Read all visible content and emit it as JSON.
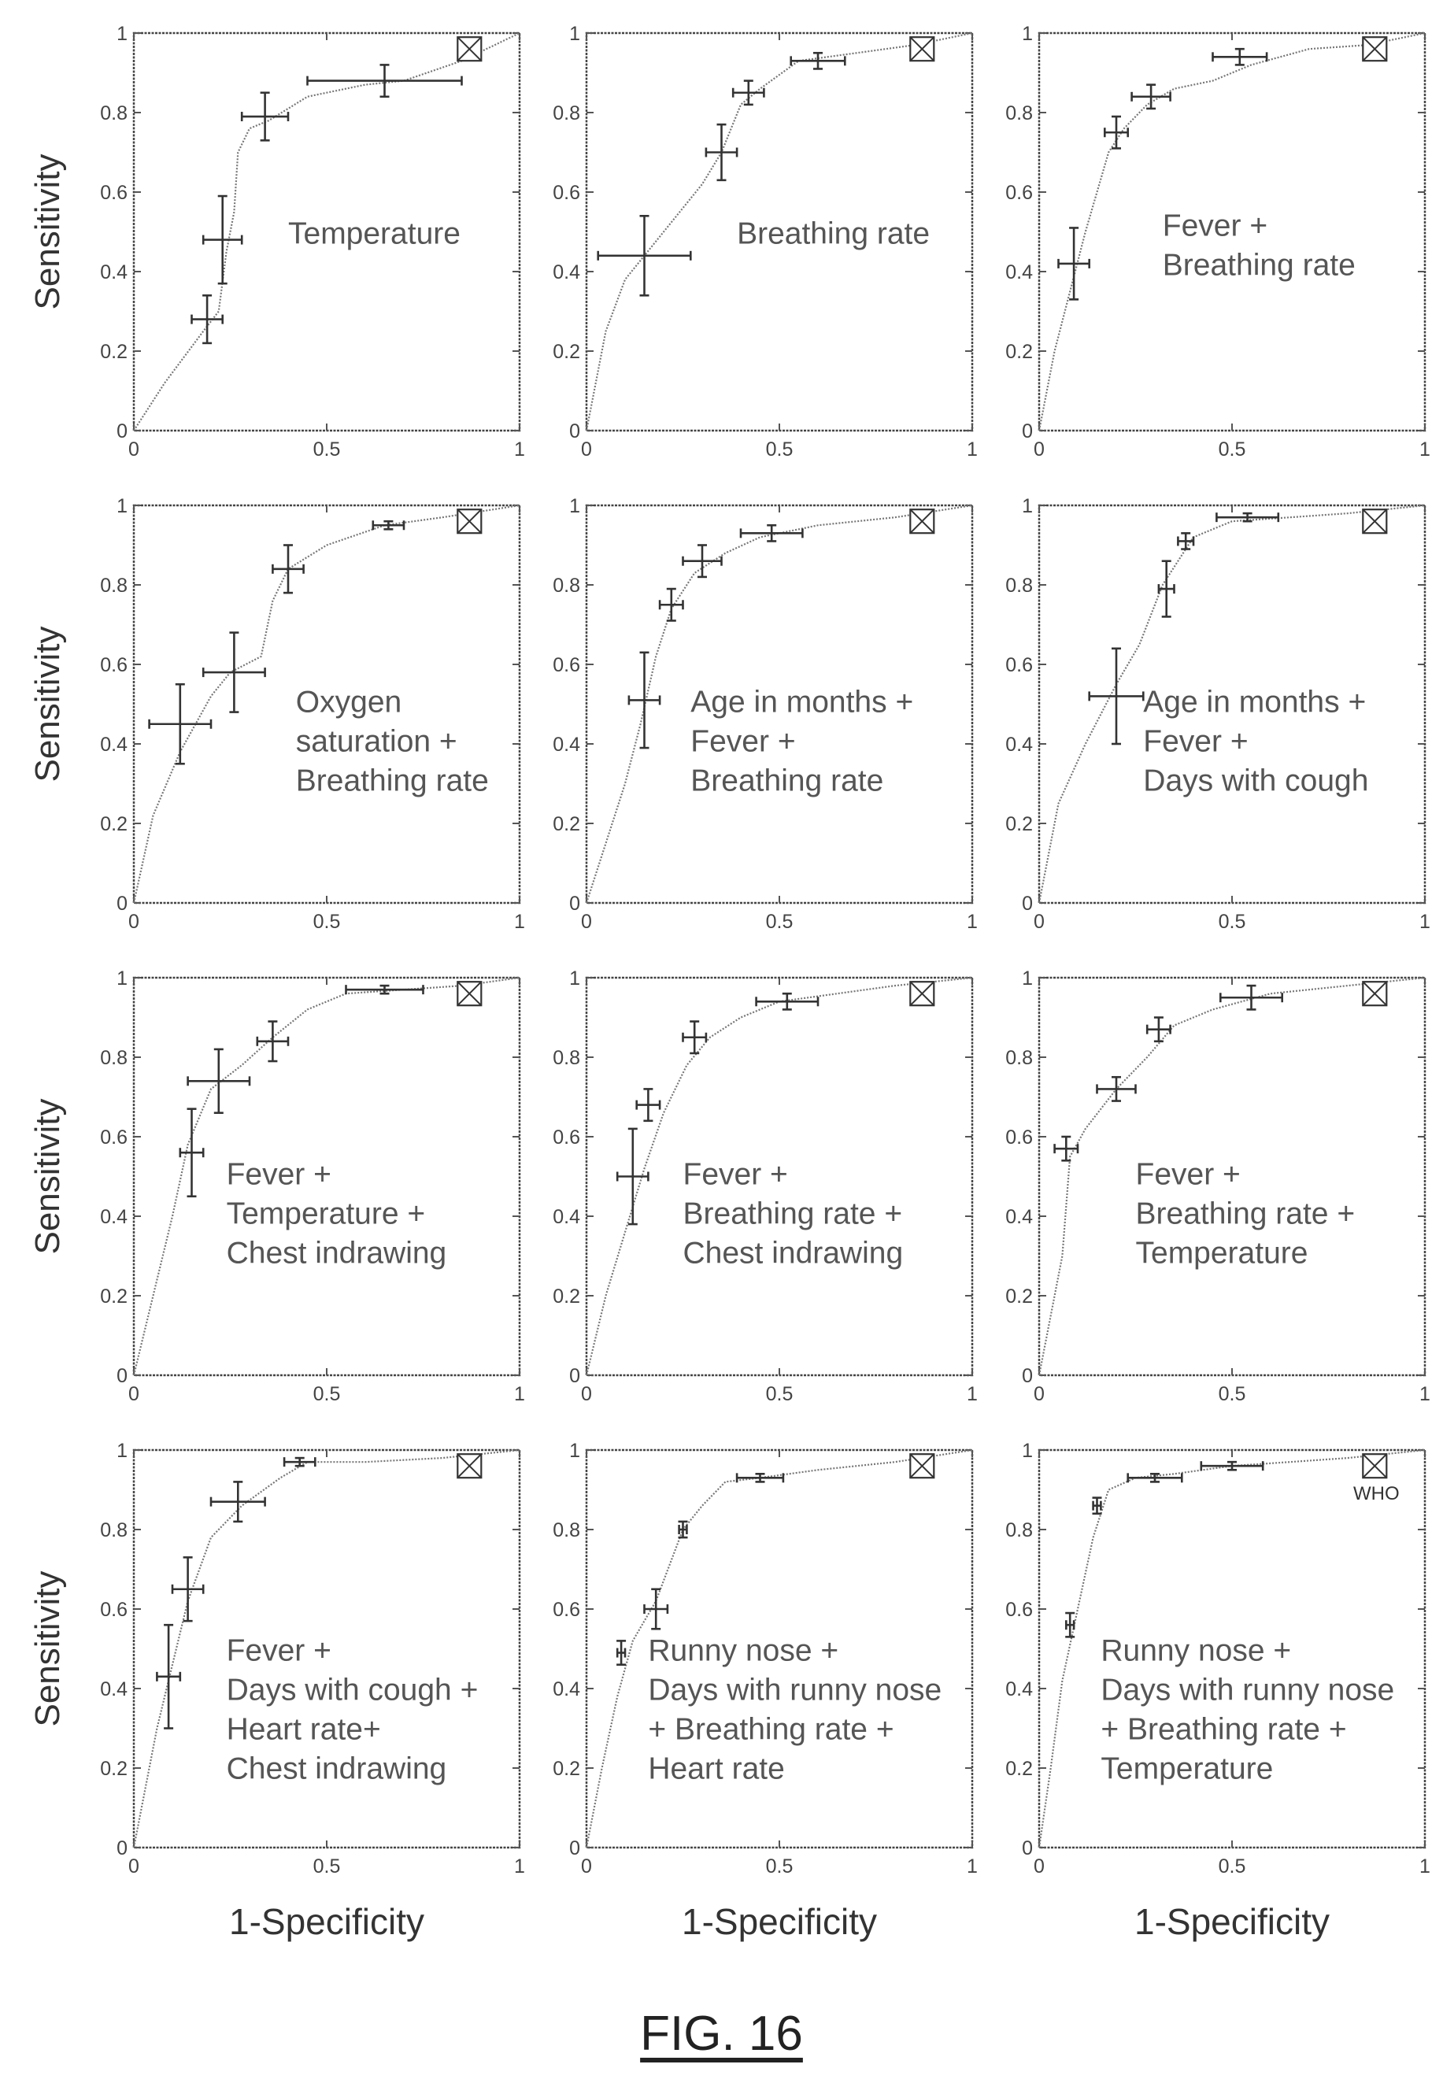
{
  "figure": {
    "caption": "FIG. 16",
    "ylabel": "Sensitivity",
    "xlabel": "1-Specificity",
    "who_label": "WHO"
  },
  "chart_data": [
    {
      "type": "line",
      "annotation": [
        "Temperature"
      ],
      "xlim": [
        0,
        1
      ],
      "ylim": [
        0,
        1
      ],
      "xticks": [
        "0",
        "0.5",
        "1"
      ],
      "yticks": [
        "0",
        "0.2",
        "0.4",
        "0.6",
        "0.8",
        "1"
      ],
      "curve": {
        "x": [
          0,
          0.08,
          0.18,
          0.22,
          0.24,
          0.26,
          0.27,
          0.3,
          0.35,
          0.45,
          0.6,
          0.7,
          0.85,
          1
        ],
        "y": [
          0,
          0.12,
          0.25,
          0.3,
          0.45,
          0.55,
          0.7,
          0.76,
          0.78,
          0.84,
          0.87,
          0.88,
          0.93,
          1
        ]
      },
      "error_points": [
        {
          "x": 0.19,
          "y": 0.28,
          "xerr": 0.04,
          "yerr": 0.06
        },
        {
          "x": 0.23,
          "y": 0.48,
          "xerr": 0.05,
          "yerr": 0.11
        },
        {
          "x": 0.34,
          "y": 0.79,
          "xerr": 0.06,
          "yerr": 0.06
        },
        {
          "x": 0.65,
          "y": 0.88,
          "xerr": 0.2,
          "yerr": 0.04
        }
      ],
      "who": {
        "x": 0.87,
        "y": 0.96,
        "show_label": false
      }
    },
    {
      "type": "line",
      "annotation": [
        "Breathing rate"
      ],
      "xlim": [
        0,
        1
      ],
      "ylim": [
        0,
        1
      ],
      "xticks": [
        "0",
        "0.5",
        "1"
      ],
      "yticks": [
        "0",
        "0.2",
        "0.4",
        "0.6",
        "0.8",
        "1"
      ],
      "curve": {
        "x": [
          0,
          0.05,
          0.1,
          0.2,
          0.3,
          0.35,
          0.4,
          0.45,
          0.55,
          0.7,
          0.85,
          1
        ],
        "y": [
          0,
          0.25,
          0.38,
          0.5,
          0.62,
          0.7,
          0.82,
          0.86,
          0.93,
          0.95,
          0.97,
          1
        ]
      },
      "error_points": [
        {
          "x": 0.15,
          "y": 0.44,
          "xerr": 0.12,
          "yerr": 0.1
        },
        {
          "x": 0.35,
          "y": 0.7,
          "xerr": 0.04,
          "yerr": 0.07
        },
        {
          "x": 0.42,
          "y": 0.85,
          "xerr": 0.04,
          "yerr": 0.03
        },
        {
          "x": 0.6,
          "y": 0.93,
          "xerr": 0.07,
          "yerr": 0.02
        }
      ],
      "who": {
        "x": 0.87,
        "y": 0.96,
        "show_label": false
      }
    },
    {
      "type": "line",
      "annotation": [
        "Fever +",
        "Breathing rate"
      ],
      "xlim": [
        0,
        1
      ],
      "ylim": [
        0,
        1
      ],
      "xticks": [
        "0",
        "0.5",
        "1"
      ],
      "yticks": [
        "0",
        "0.2",
        "0.4",
        "0.6",
        "0.8",
        "1"
      ],
      "curve": {
        "x": [
          0,
          0.04,
          0.08,
          0.12,
          0.18,
          0.22,
          0.28,
          0.35,
          0.45,
          0.55,
          0.7,
          0.85,
          1
        ],
        "y": [
          0,
          0.2,
          0.35,
          0.5,
          0.7,
          0.76,
          0.82,
          0.86,
          0.88,
          0.92,
          0.96,
          0.97,
          1
        ]
      },
      "error_points": [
        {
          "x": 0.09,
          "y": 0.42,
          "xerr": 0.04,
          "yerr": 0.09
        },
        {
          "x": 0.2,
          "y": 0.75,
          "xerr": 0.03,
          "yerr": 0.04
        },
        {
          "x": 0.29,
          "y": 0.84,
          "xerr": 0.05,
          "yerr": 0.03
        },
        {
          "x": 0.52,
          "y": 0.94,
          "xerr": 0.07,
          "yerr": 0.02
        }
      ],
      "who": {
        "x": 0.87,
        "y": 0.96,
        "show_label": false
      }
    },
    {
      "type": "line",
      "annotation": [
        "Oxygen",
        "saturation +",
        "Breathing rate"
      ],
      "xlim": [
        0,
        1
      ],
      "ylim": [
        0,
        1
      ],
      "xticks": [
        "0",
        "0.5",
        "1"
      ],
      "yticks": [
        "0",
        "0.2",
        "0.4",
        "0.6",
        "0.8",
        "1"
      ],
      "curve": {
        "x": [
          0,
          0.05,
          0.12,
          0.2,
          0.25,
          0.33,
          0.36,
          0.4,
          0.5,
          0.65,
          0.8,
          1
        ],
        "y": [
          0,
          0.22,
          0.38,
          0.52,
          0.58,
          0.62,
          0.76,
          0.84,
          0.9,
          0.95,
          0.97,
          1
        ]
      },
      "error_points": [
        {
          "x": 0.12,
          "y": 0.45,
          "xerr": 0.08,
          "yerr": 0.1
        },
        {
          "x": 0.26,
          "y": 0.58,
          "xerr": 0.08,
          "yerr": 0.1
        },
        {
          "x": 0.4,
          "y": 0.84,
          "xerr": 0.04,
          "yerr": 0.06
        },
        {
          "x": 0.66,
          "y": 0.95,
          "xerr": 0.04,
          "yerr": 0.01
        }
      ],
      "who": {
        "x": 0.87,
        "y": 0.96,
        "show_label": false
      }
    },
    {
      "type": "line",
      "annotation": [
        "Age in months +",
        "Fever +",
        "Breathing rate"
      ],
      "xlim": [
        0,
        1
      ],
      "ylim": [
        0,
        1
      ],
      "xticks": [
        "0",
        "0.5",
        "1"
      ],
      "yticks": [
        "0",
        "0.2",
        "0.4",
        "0.6",
        "0.8",
        "1"
      ],
      "curve": {
        "x": [
          0,
          0.05,
          0.1,
          0.14,
          0.18,
          0.22,
          0.28,
          0.36,
          0.45,
          0.6,
          0.8,
          1
        ],
        "y": [
          0,
          0.15,
          0.3,
          0.45,
          0.62,
          0.74,
          0.83,
          0.88,
          0.92,
          0.95,
          0.97,
          1
        ]
      },
      "error_points": [
        {
          "x": 0.15,
          "y": 0.51,
          "xerr": 0.04,
          "yerr": 0.12
        },
        {
          "x": 0.22,
          "y": 0.75,
          "xerr": 0.03,
          "yerr": 0.04
        },
        {
          "x": 0.3,
          "y": 0.86,
          "xerr": 0.05,
          "yerr": 0.04
        },
        {
          "x": 0.48,
          "y": 0.93,
          "xerr": 0.08,
          "yerr": 0.02
        }
      ],
      "who": {
        "x": 0.87,
        "y": 0.96,
        "show_label": false
      }
    },
    {
      "type": "line",
      "annotation": [
        "Age in months +",
        "Fever +",
        "Days with cough"
      ],
      "xlim": [
        0,
        1
      ],
      "ylim": [
        0,
        1
      ],
      "xticks": [
        "0",
        "0.5",
        "1"
      ],
      "yticks": [
        "0",
        "0.2",
        "0.4",
        "0.6",
        "0.8",
        "1"
      ],
      "curve": {
        "x": [
          0,
          0.05,
          0.12,
          0.2,
          0.26,
          0.32,
          0.4,
          0.5,
          0.65,
          0.8,
          1
        ],
        "y": [
          0,
          0.25,
          0.4,
          0.55,
          0.65,
          0.8,
          0.92,
          0.96,
          0.97,
          0.98,
          1
        ]
      },
      "error_points": [
        {
          "x": 0.2,
          "y": 0.52,
          "xerr": 0.07,
          "yerr": 0.12
        },
        {
          "x": 0.33,
          "y": 0.79,
          "xerr": 0.02,
          "yerr": 0.07
        },
        {
          "x": 0.38,
          "y": 0.91,
          "xerr": 0.02,
          "yerr": 0.02
        },
        {
          "x": 0.54,
          "y": 0.97,
          "xerr": 0.08,
          "yerr": 0.01
        }
      ],
      "who": {
        "x": 0.87,
        "y": 0.96,
        "show_label": false
      }
    },
    {
      "type": "line",
      "annotation": [
        "Fever +",
        "Temperature +",
        "Chest indrawing"
      ],
      "xlim": [
        0,
        1
      ],
      "ylim": [
        0,
        1
      ],
      "xticks": [
        "0",
        "0.5",
        "1"
      ],
      "yticks": [
        "0",
        "0.2",
        "0.4",
        "0.6",
        "0.8",
        "1"
      ],
      "curve": {
        "x": [
          0,
          0.05,
          0.1,
          0.14,
          0.2,
          0.28,
          0.36,
          0.45,
          0.55,
          0.7,
          0.85,
          1
        ],
        "y": [
          0,
          0.2,
          0.4,
          0.58,
          0.72,
          0.78,
          0.85,
          0.92,
          0.96,
          0.97,
          0.98,
          1
        ]
      },
      "error_points": [
        {
          "x": 0.15,
          "y": 0.56,
          "xerr": 0.03,
          "yerr": 0.11
        },
        {
          "x": 0.22,
          "y": 0.74,
          "xerr": 0.08,
          "yerr": 0.08
        },
        {
          "x": 0.36,
          "y": 0.84,
          "xerr": 0.04,
          "yerr": 0.05
        },
        {
          "x": 0.65,
          "y": 0.97,
          "xerr": 0.1,
          "yerr": 0.01
        }
      ],
      "who": {
        "x": 0.87,
        "y": 0.96,
        "show_label": false
      }
    },
    {
      "type": "line",
      "annotation": [
        "Fever +",
        "Breathing rate +",
        "Chest indrawing"
      ],
      "xlim": [
        0,
        1
      ],
      "ylim": [
        0,
        1
      ],
      "xticks": [
        "0",
        "0.5",
        "1"
      ],
      "yticks": [
        "0",
        "0.2",
        "0.4",
        "0.6",
        "0.8",
        "1"
      ],
      "curve": {
        "x": [
          0,
          0.05,
          0.1,
          0.15,
          0.2,
          0.26,
          0.32,
          0.4,
          0.5,
          0.65,
          0.8,
          1
        ],
        "y": [
          0,
          0.2,
          0.36,
          0.52,
          0.66,
          0.78,
          0.85,
          0.9,
          0.94,
          0.96,
          0.98,
          1
        ]
      },
      "error_points": [
        {
          "x": 0.12,
          "y": 0.5,
          "xerr": 0.04,
          "yerr": 0.12
        },
        {
          "x": 0.16,
          "y": 0.68,
          "xerr": 0.03,
          "yerr": 0.04
        },
        {
          "x": 0.28,
          "y": 0.85,
          "xerr": 0.03,
          "yerr": 0.04
        },
        {
          "x": 0.52,
          "y": 0.94,
          "xerr": 0.08,
          "yerr": 0.02
        }
      ],
      "who": {
        "x": 0.87,
        "y": 0.96,
        "show_label": false
      }
    },
    {
      "type": "line",
      "annotation": [
        "Fever +",
        "Breathing rate +",
        "Temperature"
      ],
      "xlim": [
        0,
        1
      ],
      "ylim": [
        0,
        1
      ],
      "xticks": [
        "0",
        "0.5",
        "1"
      ],
      "yticks": [
        "0",
        "0.2",
        "0.4",
        "0.6",
        "0.8",
        "1"
      ],
      "curve": {
        "x": [
          0,
          0.03,
          0.06,
          0.08,
          0.12,
          0.2,
          0.28,
          0.35,
          0.45,
          0.6,
          0.8,
          1
        ],
        "y": [
          0,
          0.15,
          0.3,
          0.55,
          0.62,
          0.72,
          0.8,
          0.88,
          0.92,
          0.96,
          0.98,
          1
        ]
      },
      "error_points": [
        {
          "x": 0.07,
          "y": 0.57,
          "xerr": 0.03,
          "yerr": 0.03
        },
        {
          "x": 0.2,
          "y": 0.72,
          "xerr": 0.05,
          "yerr": 0.03
        },
        {
          "x": 0.31,
          "y": 0.87,
          "xerr": 0.03,
          "yerr": 0.03
        },
        {
          "x": 0.55,
          "y": 0.95,
          "xerr": 0.08,
          "yerr": 0.03
        }
      ],
      "who": {
        "x": 0.87,
        "y": 0.96,
        "show_label": false
      }
    },
    {
      "type": "line",
      "annotation": [
        "Fever +",
        "Days with cough +",
        "Heart rate+",
        "Chest indrawing"
      ],
      "xlim": [
        0,
        1
      ],
      "ylim": [
        0,
        1
      ],
      "xticks": [
        "0",
        "0.5",
        "1"
      ],
      "yticks": [
        "0",
        "0.2",
        "0.4",
        "0.6",
        "0.8",
        "1"
      ],
      "curve": {
        "x": [
          0,
          0.03,
          0.06,
          0.1,
          0.14,
          0.2,
          0.28,
          0.38,
          0.45,
          0.6,
          0.8,
          1
        ],
        "y": [
          0,
          0.15,
          0.3,
          0.46,
          0.62,
          0.78,
          0.86,
          0.93,
          0.97,
          0.97,
          0.98,
          1
        ]
      },
      "error_points": [
        {
          "x": 0.09,
          "y": 0.43,
          "xerr": 0.03,
          "yerr": 0.13
        },
        {
          "x": 0.14,
          "y": 0.65,
          "xerr": 0.04,
          "yerr": 0.08
        },
        {
          "x": 0.27,
          "y": 0.87,
          "xerr": 0.07,
          "yerr": 0.05
        },
        {
          "x": 0.43,
          "y": 0.97,
          "xerr": 0.04,
          "yerr": 0.01
        }
      ],
      "who": {
        "x": 0.87,
        "y": 0.96,
        "show_label": false
      }
    },
    {
      "type": "line",
      "annotation": [
        "Runny nose +",
        "Days with runny nose",
        "+ Breathing rate +",
        "Heart rate"
      ],
      "xlim": [
        0,
        1
      ],
      "ylim": [
        0,
        1
      ],
      "xticks": [
        "0",
        "0.5",
        "1"
      ],
      "yticks": [
        "0",
        "0.2",
        "0.4",
        "0.6",
        "0.8",
        "1"
      ],
      "curve": {
        "x": [
          0,
          0.04,
          0.08,
          0.12,
          0.18,
          0.25,
          0.3,
          0.36,
          0.45,
          0.6,
          0.8,
          1
        ],
        "y": [
          0,
          0.2,
          0.38,
          0.52,
          0.62,
          0.8,
          0.86,
          0.92,
          0.93,
          0.95,
          0.97,
          1
        ]
      },
      "error_points": [
        {
          "x": 0.09,
          "y": 0.49,
          "xerr": 0.01,
          "yerr": 0.03
        },
        {
          "x": 0.18,
          "y": 0.6,
          "xerr": 0.03,
          "yerr": 0.05
        },
        {
          "x": 0.25,
          "y": 0.8,
          "xerr": 0.01,
          "yerr": 0.02
        },
        {
          "x": 0.45,
          "y": 0.93,
          "xerr": 0.06,
          "yerr": 0.01
        }
      ],
      "who": {
        "x": 0.87,
        "y": 0.96,
        "show_label": false
      }
    },
    {
      "type": "line",
      "annotation": [
        "Runny nose +",
        "Days with runny nose",
        "+ Breathing rate +",
        "Temperature"
      ],
      "xlim": [
        0,
        1
      ],
      "ylim": [
        0,
        1
      ],
      "xticks": [
        "0",
        "0.5",
        "1"
      ],
      "yticks": [
        "0",
        "0.2",
        "0.4",
        "0.6",
        "0.8",
        "1"
      ],
      "curve": {
        "x": [
          0,
          0.03,
          0.06,
          0.1,
          0.14,
          0.18,
          0.25,
          0.35,
          0.5,
          0.65,
          0.8,
          1
        ],
        "y": [
          0,
          0.2,
          0.42,
          0.6,
          0.78,
          0.9,
          0.93,
          0.94,
          0.96,
          0.97,
          0.98,
          1
        ]
      },
      "error_points": [
        {
          "x": 0.08,
          "y": 0.56,
          "xerr": 0.01,
          "yerr": 0.03
        },
        {
          "x": 0.15,
          "y": 0.86,
          "xerr": 0.01,
          "yerr": 0.02
        },
        {
          "x": 0.3,
          "y": 0.93,
          "xerr": 0.07,
          "yerr": 0.01
        },
        {
          "x": 0.5,
          "y": 0.96,
          "xerr": 0.08,
          "yerr": 0.01
        }
      ],
      "who": {
        "x": 0.87,
        "y": 0.96,
        "show_label": true
      }
    }
  ]
}
